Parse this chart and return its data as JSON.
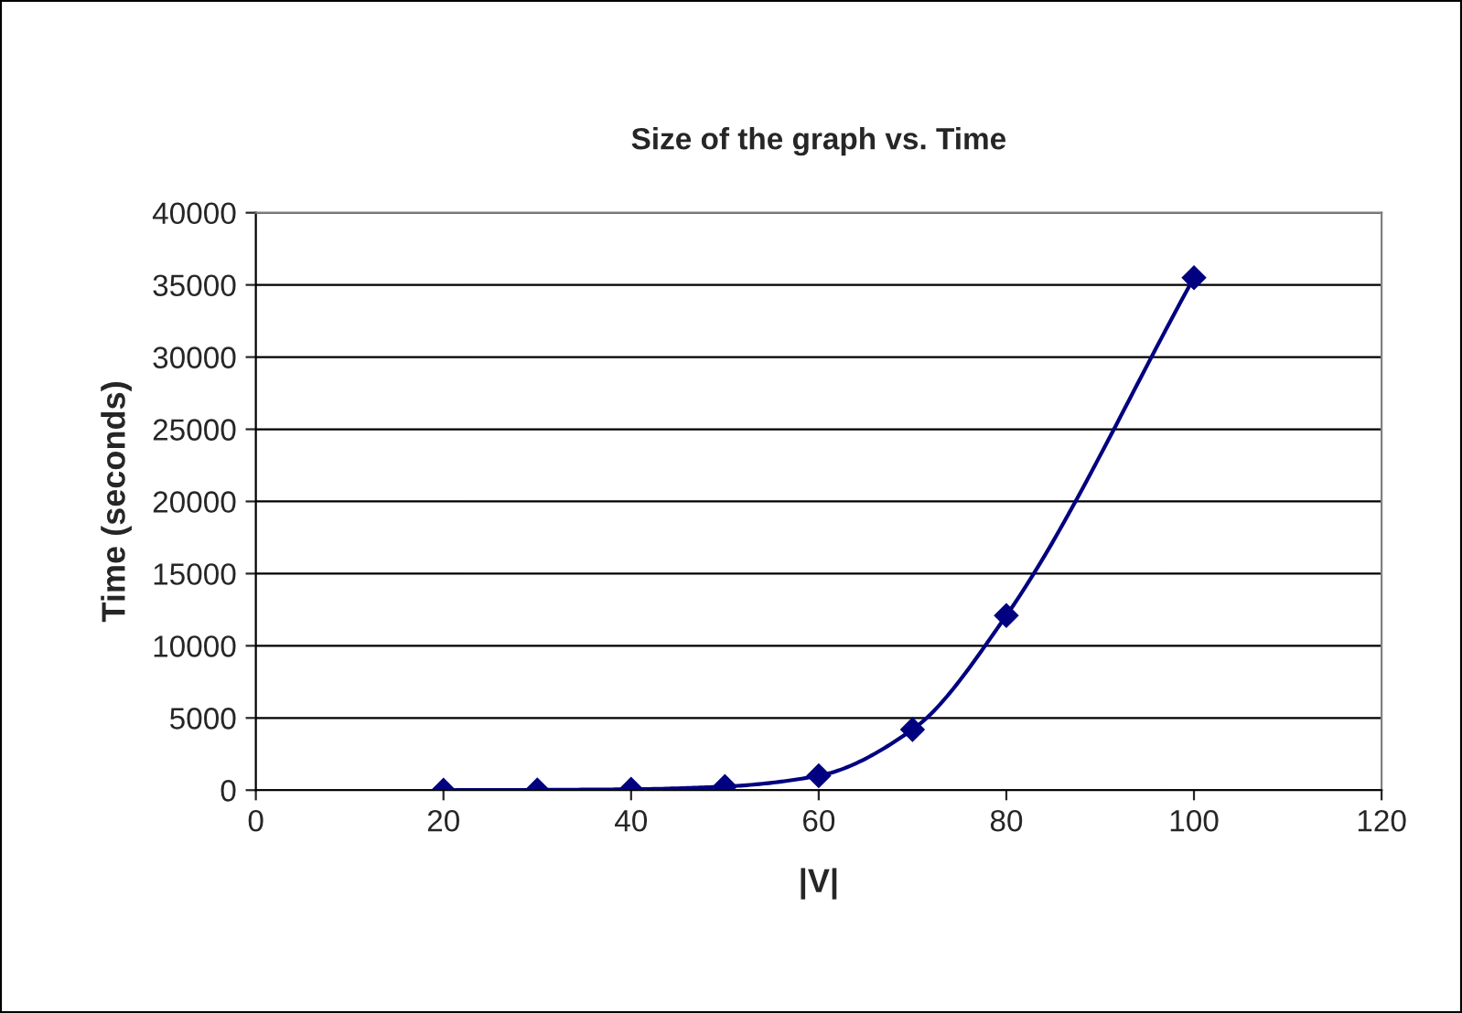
{
  "chart_data": {
    "type": "line",
    "title": "Size of the graph vs. Time",
    "xlabel": "|V|",
    "ylabel": "Time (seconds)",
    "x": [
      20,
      30,
      40,
      50,
      60,
      70,
      80,
      100
    ],
    "series": [
      {
        "color": "#000080",
        "values": [
          0,
          20,
          60,
          250,
          1000,
          4200,
          12100,
          35500
        ]
      }
    ],
    "xlim": [
      0,
      120
    ],
    "xticks": [
      0,
      20,
      40,
      60,
      80,
      100,
      120
    ],
    "ylim": [
      0,
      40000
    ],
    "yticks": [
      0,
      5000,
      10000,
      15000,
      20000,
      25000,
      30000,
      35000,
      40000
    ],
    "grid": "y",
    "marker": "diamond",
    "line_style": "solid",
    "legend": false
  }
}
